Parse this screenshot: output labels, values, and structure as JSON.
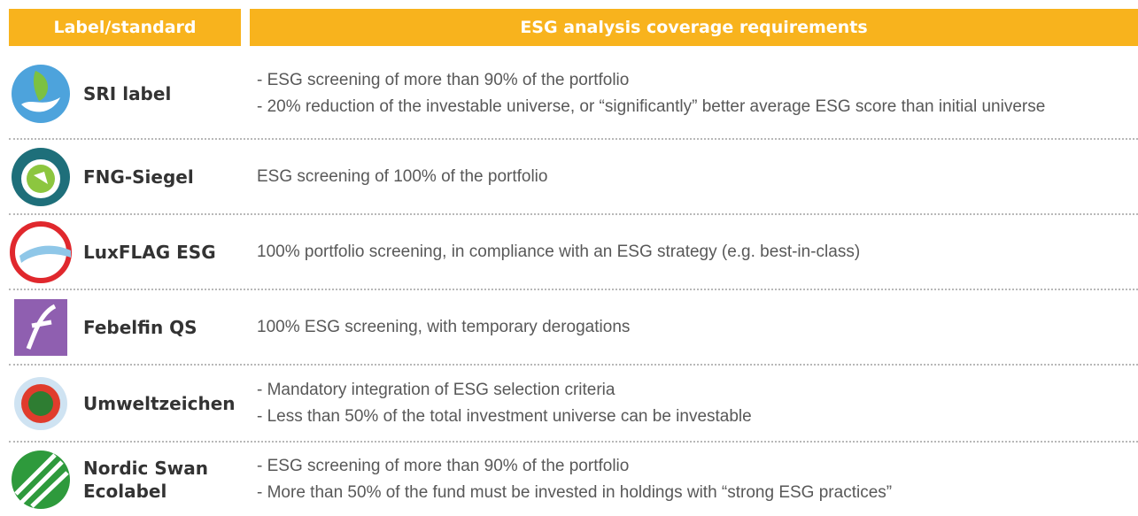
{
  "table": {
    "header": [
      "Label/standard",
      "ESG analysis coverage requirements"
    ],
    "rows": [
      {
        "label": "SRI label",
        "requirements": [
          "- ESG screening of more than 90% of the portfolio",
          "- 20% reduction of the investable universe, or “significantly” better average ESG score than initial universe"
        ]
      },
      {
        "label": "FNG-Siegel",
        "requirements": [
          "ESG screening of 100% of the portfolio"
        ]
      },
      {
        "label": "LuxFLAG ESG",
        "requirements": [
          "100% portfolio screening, in compliance with an ESG strategy (e.g. best-in-class)"
        ]
      },
      {
        "label": "Febelfin QS",
        "requirements": [
          "100% ESG screening, with temporary derogations"
        ]
      },
      {
        "label": "Umweltzeichen",
        "requirements": [
          "- Mandatory integration of ESG selection criteria",
          "- Less than 50% of the total investment universe can be investable"
        ]
      },
      {
        "label": "Nordic Swan Ecolabel",
        "requirements": [
          "- ESG screening of more than 90% of the portfolio",
          "- More than 50% of the fund must be invested in holdings with “strong ESG practices”"
        ]
      }
    ]
  }
}
